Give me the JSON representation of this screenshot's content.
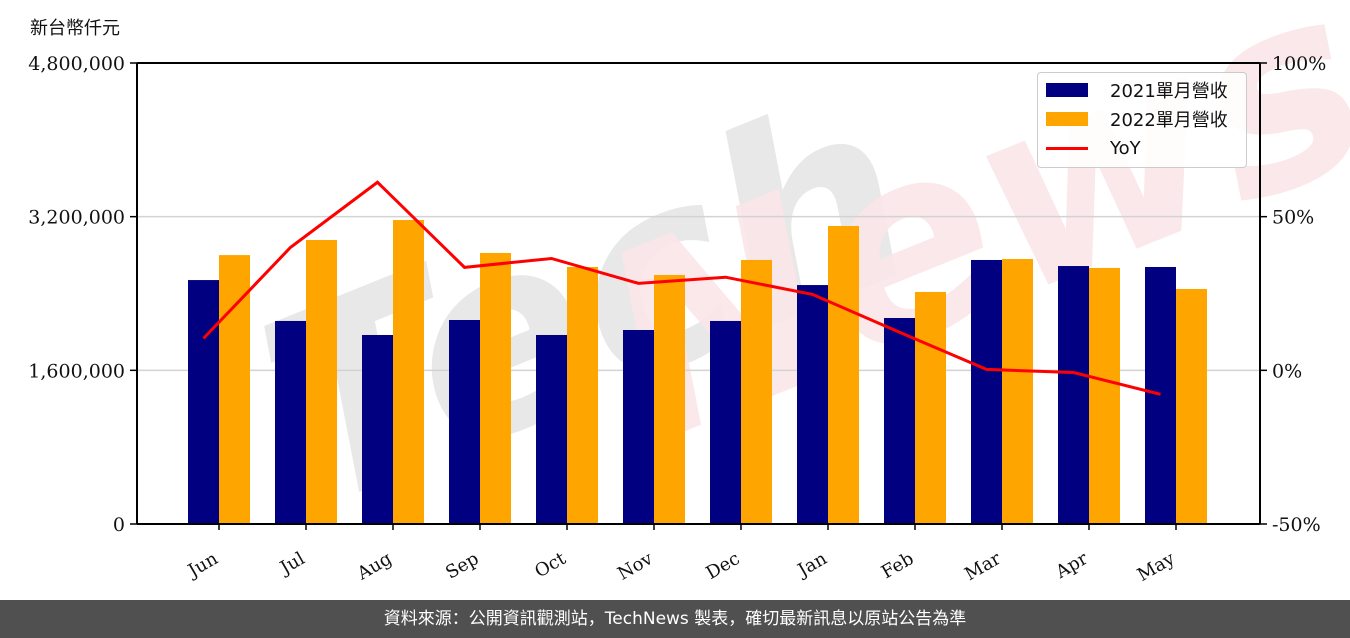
{
  "chart": {
    "unit_label": "新台幣仟元",
    "colors": {
      "series_2021": "#000080",
      "series_2022": "#FFA500",
      "yoy": "#FF0000",
      "grid": "#d3d3d3",
      "watermark_gray": "#e6e6e6",
      "watermark_pink": "#fae6e8",
      "footer_bg": "#505050"
    },
    "legend": {
      "items": [
        {
          "label": "2021單月營收",
          "kind": "bar",
          "color": "#000080"
        },
        {
          "label": "2022單月營收",
          "kind": "bar",
          "color": "#FFA500"
        },
        {
          "label": "YoY",
          "kind": "line",
          "color": "#FF0000"
        }
      ]
    },
    "left_axis": {
      "ticks": [
        "0",
        "1,600,000",
        "3,200,000",
        "4,800,000"
      ],
      "values": [
        0,
        1600000,
        3200000,
        4800000
      ]
    },
    "right_axis": {
      "ticks": [
        "-50%",
        "0%",
        "50%",
        "100%"
      ],
      "values": [
        -50,
        0,
        50,
        100
      ]
    },
    "watermark": "TechNews"
  },
  "footer": {
    "text": "資料來源：公開資訊觀測站，TechNews 製表，確切最新訊息以原站公告為準"
  },
  "chart_data": {
    "type": "bar",
    "title": "",
    "xlabel": "",
    "ylabel": "新台幣仟元",
    "y2label": "YoY",
    "categories": [
      "Jun",
      "Jul",
      "Aug",
      "Sep",
      "Oct",
      "Nov",
      "Dec",
      "Jan",
      "Feb",
      "Mar",
      "Apr",
      "May"
    ],
    "series": [
      {
        "name": "2021單月營收",
        "type": "bar",
        "axis": "left",
        "values": [
          2540000,
          2114000,
          1968000,
          2124000,
          1968000,
          2020000,
          2114000,
          2488000,
          2145000,
          2749000,
          2686000,
          2676000
        ]
      },
      {
        "name": "2022單月營收",
        "type": "bar",
        "axis": "left",
        "values": [
          2800000,
          2957000,
          3165000,
          2822000,
          2676000,
          2593000,
          2749000,
          3103000,
          2416000,
          2759000,
          2666000,
          2447000
        ]
      },
      {
        "name": "YoY",
        "type": "line",
        "axis": "right",
        "unit": "%",
        "values": [
          10.4,
          40.0,
          61.2,
          33.5,
          36.4,
          28.3,
          30.3,
          24.7,
          12.4,
          0.3,
          -0.7,
          -7.8
        ]
      }
    ],
    "ylim": [
      0,
      4800000
    ],
    "y2lim": [
      -50,
      100
    ],
    "yticks": [
      0,
      1600000,
      3200000,
      4800000
    ],
    "y2ticks": [
      -50,
      0,
      50,
      100
    ],
    "grid": true,
    "legend_position": "upper right"
  }
}
